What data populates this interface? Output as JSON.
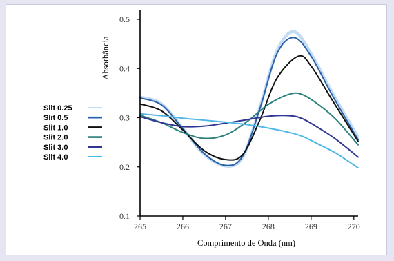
{
  "chart_data": {
    "type": "line",
    "xlabel": "Comprimento de Onda (nm)",
    "ylabel": "Absorbância",
    "xlim": [
      265,
      270.1
    ],
    "ylim": [
      0.1,
      0.5
    ],
    "xticks": [
      265,
      266,
      267,
      268,
      269,
      270
    ],
    "yticks": [
      0.1,
      0.2,
      0.3,
      0.4,
      0.5
    ],
    "xtick_labels": [
      "265",
      "266",
      "267",
      "268",
      "269",
      "270"
    ],
    "ytick_labels": [
      "0.1",
      "0.2",
      "0.3",
      "0.4",
      "0.5"
    ],
    "grid": false,
    "legend_position": "left",
    "series": [
      {
        "name": "Slit 0.25",
        "color": "#c4dcf3",
        "width": 4.5,
        "x": [
          265,
          265.5,
          266,
          266.5,
          267,
          267.4,
          267.8,
          268.2,
          268.6,
          269,
          269.5,
          270.1
        ],
        "y": [
          0.342,
          0.328,
          0.278,
          0.226,
          0.202,
          0.22,
          0.32,
          0.435,
          0.475,
          0.43,
          0.35,
          0.26
        ]
      },
      {
        "name": "Slit 0.5",
        "color": "#2a62a8",
        "width": 2,
        "x": [
          265,
          265.5,
          266,
          266.5,
          267,
          267.4,
          267.8,
          268.2,
          268.6,
          269,
          269.5,
          270.1
        ],
        "y": [
          0.34,
          0.326,
          0.278,
          0.227,
          0.203,
          0.222,
          0.318,
          0.43,
          0.463,
          0.425,
          0.345,
          0.255
        ]
      },
      {
        "name": "Slit 1.0",
        "color": "#111111",
        "width": 2,
        "x": [
          265,
          265.5,
          266,
          266.5,
          267,
          267.4,
          267.8,
          268.2,
          268.7,
          269,
          269.5,
          270.1
        ],
        "y": [
          0.328,
          0.314,
          0.275,
          0.233,
          0.215,
          0.225,
          0.295,
          0.38,
          0.425,
          0.405,
          0.335,
          0.252
        ]
      },
      {
        "name": "Slit 2.0",
        "color": "#2b7f7d",
        "width": 2,
        "x": [
          265,
          265.5,
          266,
          266.5,
          267,
          267.5,
          268,
          268.5,
          268.8,
          269.2,
          269.6,
          270.1
        ],
        "y": [
          0.305,
          0.29,
          0.27,
          0.258,
          0.265,
          0.292,
          0.327,
          0.348,
          0.347,
          0.325,
          0.295,
          0.245
        ]
      },
      {
        "name": "Slit 3.0",
        "color": "#2f3590",
        "width": 2,
        "x": [
          265,
          265.5,
          266,
          266.5,
          267,
          267.5,
          268,
          268.5,
          268.8,
          269.2,
          269.6,
          270.1
        ],
        "y": [
          0.302,
          0.29,
          0.282,
          0.283,
          0.289,
          0.296,
          0.303,
          0.304,
          0.298,
          0.278,
          0.255,
          0.22
        ]
      },
      {
        "name": "Slit 4.0",
        "color": "#4fb8e8",
        "width": 2,
        "x": [
          265,
          265.5,
          266,
          266.5,
          267,
          267.5,
          268,
          268.5,
          268.8,
          269.2,
          269.6,
          270.1
        ],
        "y": [
          0.308,
          0.304,
          0.299,
          0.295,
          0.291,
          0.286,
          0.279,
          0.27,
          0.262,
          0.245,
          0.227,
          0.198
        ]
      }
    ]
  }
}
